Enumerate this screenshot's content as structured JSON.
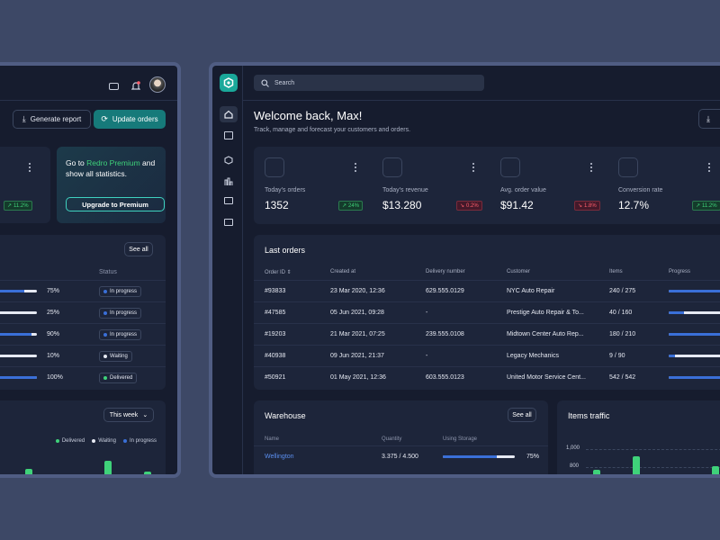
{
  "left": {
    "generate_report": "Generate report",
    "update_orders": "Update orders",
    "stat_badge": "11.2%",
    "premium": {
      "prefix": "Go to ",
      "highlight": "Redro Premium",
      "suffix": " and",
      "line2": "show all statistics.",
      "button": "Upgrade to Premium"
    },
    "orders": {
      "see_all": "See all",
      "col_progress": "s",
      "col_status": "Status",
      "rows": [
        {
          "pct": "75%",
          "fill": 0.75,
          "status": "In progress",
          "color": "#3a6fd8"
        },
        {
          "pct": "25%",
          "fill": 0.25,
          "status": "In progress",
          "color": "#3a6fd8"
        },
        {
          "pct": "90%",
          "fill": 0.9,
          "status": "In progress",
          "color": "#3a6fd8"
        },
        {
          "pct": "10%",
          "fill": 0.1,
          "status": "Waiting",
          "color": "#e6e9f2"
        },
        {
          "pct": "100%",
          "fill": 1.0,
          "status": "Delivered",
          "color": "#3fd27a"
        }
      ]
    },
    "chart": {
      "period": "This week",
      "legend": [
        {
          "label": "Delivered",
          "color": "#3fd27a"
        },
        {
          "label": "Waiting",
          "color": "#e6e9f2"
        },
        {
          "label": "In progress",
          "color": "#3a6fd8"
        }
      ]
    }
  },
  "right": {
    "search_placeholder": "Search",
    "welcome": "Welcome back, Max!",
    "subtitle": "Track, manage and forecast your customers and orders.",
    "stats": [
      {
        "label": "Today's orders",
        "value": "1352",
        "badge": "24%",
        "trend": "up"
      },
      {
        "label": "Today's revenue",
        "value": "$13.280",
        "badge": "0.2%",
        "trend": "down"
      },
      {
        "label": "Avg. order value",
        "value": "$91.42",
        "badge": "1.8%",
        "trend": "down"
      },
      {
        "label": "Conversion rate",
        "value": "12.7%",
        "badge": "11.2%",
        "trend": "up"
      }
    ],
    "last_orders": {
      "title": "Last orders",
      "columns": [
        "Order ID",
        "Created at",
        "Delivery number",
        "Customer",
        "Items",
        "Progress"
      ],
      "rows": [
        {
          "id": "#93833",
          "created": "23 Mar 2020, 12:36",
          "delivery": "629.555.0129",
          "customer": "NYC Auto Repair",
          "items": "240 / 275",
          "progress": 0.87
        },
        {
          "id": "#47585",
          "created": "05 Jun 2021, 09:28",
          "delivery": "-",
          "customer": "Prestige Auto Repair & To...",
          "items": "40 / 160",
          "progress": 0.25
        },
        {
          "id": "#19203",
          "created": "21 Mar 2021, 07:25",
          "delivery": "239.555.0108",
          "customer": "Midtown Center Auto Rep...",
          "items": "180 / 210",
          "progress": 0.86
        },
        {
          "id": "#40938",
          "created": "09 Jun 2021, 21:37",
          "delivery": "-",
          "customer": "Legacy Mechanics",
          "items": "9 / 90",
          "progress": 0.1
        },
        {
          "id": "#50921",
          "created": "01 May 2021, 12:36",
          "delivery": "603.555.0123",
          "customer": "United Motor Service Cent...",
          "items": "542 / 542",
          "progress": 1.0
        }
      ]
    },
    "warehouse": {
      "title": "Warehouse",
      "see_all": "See all",
      "columns": [
        "Name",
        "Quantity",
        "Using Storage"
      ],
      "rows": [
        {
          "name": "Wellington",
          "quantity": "3.375 / 4.500",
          "pct": "75%",
          "fill": 0.75
        }
      ]
    },
    "traffic": {
      "title": "Items traffic",
      "ticks": [
        "1,000",
        "800"
      ]
    }
  }
}
